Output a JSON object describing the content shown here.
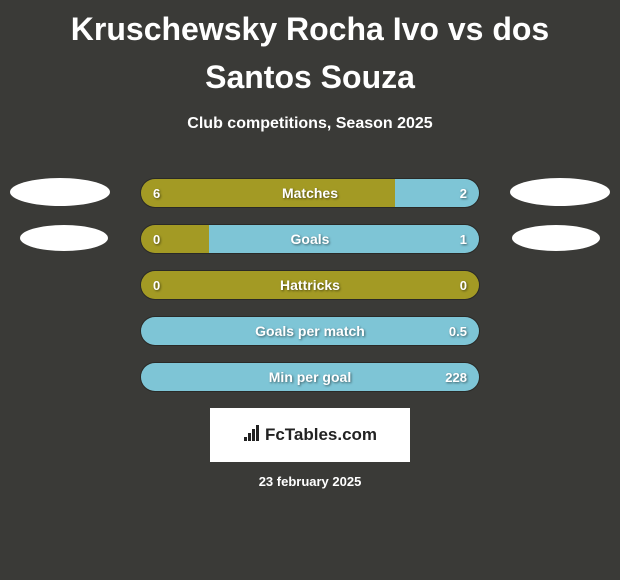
{
  "title": "Kruschewsky Rocha Ivo vs dos Santos Souza",
  "subtitle": "Club competitions, Season 2025",
  "date": "23 february 2025",
  "branding": {
    "text": "FcTables.com",
    "icon": "📊"
  },
  "colors": {
    "background": "#3a3a37",
    "left_bar": "#a39a24",
    "right_bar": "#7ec5d6",
    "text": "#ffffff"
  },
  "bars": [
    {
      "label": "Matches",
      "left_value": "6",
      "right_value": "2",
      "left_pct": 75,
      "right_pct": 25,
      "left_color": "#a39a24",
      "right_color": "#7ec5d6"
    },
    {
      "label": "Goals",
      "left_value": "0",
      "right_value": "1",
      "left_pct": 20,
      "right_pct": 80,
      "left_color": "#a39a24",
      "right_color": "#7ec5d6"
    },
    {
      "label": "Hattricks",
      "left_value": "0",
      "right_value": "0",
      "left_pct": 100,
      "right_pct": 0,
      "left_color": "#a39a24",
      "right_color": "#7ec5d6"
    },
    {
      "label": "Goals per match",
      "left_value": "",
      "right_value": "0.5",
      "left_pct": 0,
      "right_pct": 100,
      "left_color": "#a39a24",
      "right_color": "#7ec5d6"
    },
    {
      "label": "Min per goal",
      "left_value": "",
      "right_value": "228",
      "left_pct": 0,
      "right_pct": 100,
      "left_color": "#a39a24",
      "right_color": "#7ec5d6"
    }
  ]
}
